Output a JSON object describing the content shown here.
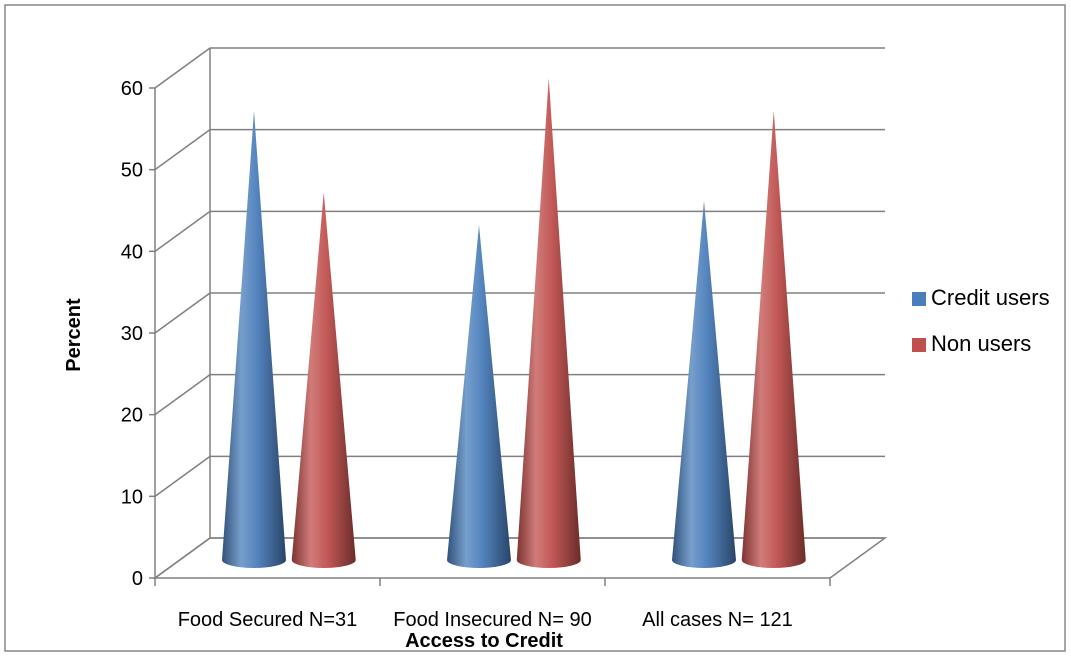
{
  "chart_data": {
    "type": "bar",
    "style": "3d-cone",
    "title": "",
    "xlabel": "Access to Credit",
    "ylabel": "Percent",
    "ylim": [
      0,
      60
    ],
    "yticks": [
      0,
      10,
      20,
      30,
      40,
      50,
      60
    ],
    "yticks_text": [
      "0",
      "10",
      "20",
      "30",
      "40",
      "50",
      "60"
    ],
    "categories": [
      "Food Secured N=31",
      "Food Insecured N= 90",
      "All cases N= 121"
    ],
    "series": [
      {
        "name": "Credit users",
        "color": "#4a7ebb",
        "values": [
          55,
          41,
          44
        ]
      },
      {
        "name": "Non users",
        "color": "#c0504d",
        "values": [
          45,
          59,
          55
        ]
      }
    ],
    "grid": true,
    "legend": "right"
  }
}
